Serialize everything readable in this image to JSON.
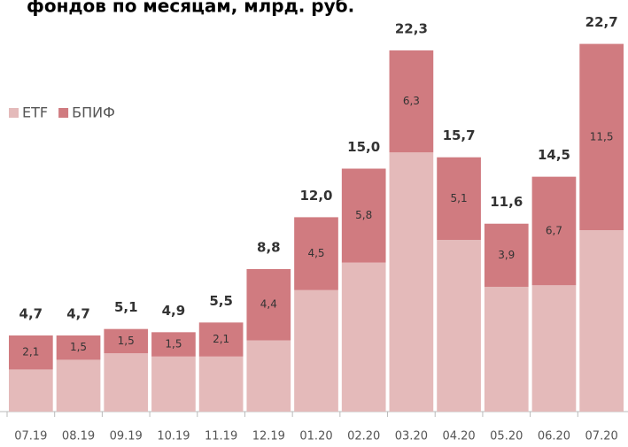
{
  "chart_data": {
    "type": "stacked_bar",
    "title": "фондов по месяцам, млрд. руб.",
    "categories": [
      "07.19",
      "08.19",
      "09.19",
      "10.19",
      "11.19",
      "12.19",
      "01.20",
      "02.20",
      "03.20",
      "04.20",
      "05.20",
      "06.20",
      "07.20"
    ],
    "series": [
      {
        "name": "ETF",
        "color": "#e4baba",
        "values": [
          2.6,
          3.2,
          3.6,
          3.4,
          3.4,
          4.4,
          7.5,
          9.2,
          16.0,
          10.6,
          7.7,
          7.8,
          11.2
        ]
      },
      {
        "name": "БПИФ",
        "color": "#d07b80",
        "values": [
          2.1,
          1.5,
          1.5,
          1.5,
          2.1,
          4.4,
          4.5,
          5.8,
          6.3,
          5.1,
          3.9,
          6.7,
          11.5
        ],
        "value_labels": [
          "2,1",
          "1,5",
          "1,5",
          "1,5",
          "2,1",
          "4,4",
          "4,5",
          "5,8",
          "6,3",
          "5,1",
          "3,9",
          "6,7",
          "11,5"
        ]
      }
    ],
    "totals": [
      4.7,
      4.7,
      5.1,
      4.9,
      5.5,
      8.8,
      12.0,
      15.0,
      22.3,
      15.7,
      11.6,
      14.5,
      22.7
    ],
    "total_labels": [
      "4,7",
      "4,7",
      "5,1",
      "4,9",
      "5,5",
      "8,8",
      "12,0",
      "15,0",
      "22,3",
      "15,7",
      "11,6",
      "14,5",
      "22,7"
    ],
    "ylim": [
      0,
      25
    ],
    "legend": "left"
  }
}
